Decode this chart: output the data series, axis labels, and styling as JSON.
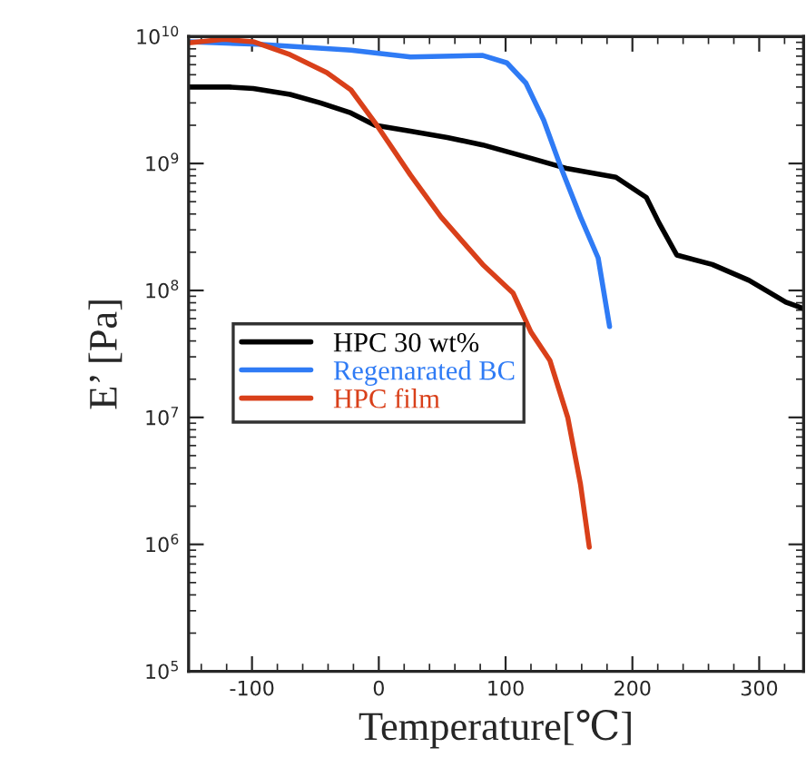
{
  "chart_data": {
    "type": "line",
    "xlabel": "Temperature[℃]",
    "ylabel": "E’ [Pa]",
    "log": "y",
    "xlim": [
      -150,
      335
    ],
    "xticks": [
      -100,
      0,
      100,
      200,
      300
    ],
    "ylim": [
      100000,
      10000000000
    ],
    "yticks": [
      {
        "value": 100000,
        "label": "10$^{5}$"
      },
      {
        "value": 1000000,
        "label": "10$^{6}$"
      },
      {
        "value": 10000000,
        "label": "10$^{7}$"
      },
      {
        "value": 100000000,
        "label": "10$^{8}$"
      },
      {
        "value": 1000000000,
        "label": "10$^{9}$"
      },
      {
        "value": 10000000000,
        "label": "10$^{10}$"
      }
    ],
    "grid": false,
    "legend": "left",
    "marker": "none",
    "line_style": "solid",
    "series": [
      {
        "name": "HPC 30 wt%",
        "color": "#000000",
        "x": [
          -150,
          -118,
          -99,
          -70,
          -46,
          -22,
          -3,
          25,
          54,
          82,
          120,
          149,
          187,
          211,
          221,
          235,
          263,
          292,
          321,
          335
        ],
        "values": [
          4000000000.0,
          4000000000.0,
          3900000000.0,
          3500000000.0,
          3000000000.0,
          2500000000.0,
          2000000000.0,
          1800000000.0,
          1600000000.0,
          1400000000.0,
          1100000000.0,
          910000000.0,
          780000000.0,
          540000000.0,
          340000000.0,
          190000000.0,
          160000000.0,
          120000000.0,
          81000000.0,
          72000000.0
        ]
      },
      {
        "name": "Regenarated BC",
        "color": "#2f7bf5",
        "x": [
          -150,
          -95,
          -22,
          25,
          82,
          101,
          116,
          130,
          144,
          159,
          173,
          182
        ],
        "values": [
          9100000000.0,
          8700000000.0,
          7800000000.0,
          6900000000.0,
          7100000000.0,
          6200000000.0,
          4300000000.0,
          2200000000.0,
          910000000.0,
          380000000.0,
          180000000.0,
          52000000.0
        ]
      },
      {
        "name": "HPC film",
        "color": "#d9401a",
        "x": [
          -150,
          -122,
          -99,
          -70,
          -41,
          -22,
          -3,
          25,
          49,
          82,
          106,
          120,
          135,
          149,
          159,
          166
        ],
        "values": [
          8900000000.0,
          9500000000.0,
          9100000000.0,
          7200000000.0,
          5200000000.0,
          3800000000.0,
          2100000000.0,
          810000000.0,
          380000000.0,
          160000000.0,
          95000000.0,
          47000000.0,
          28000000.0,
          10000000.0,
          3000000.0,
          950000.0
        ]
      }
    ]
  }
}
